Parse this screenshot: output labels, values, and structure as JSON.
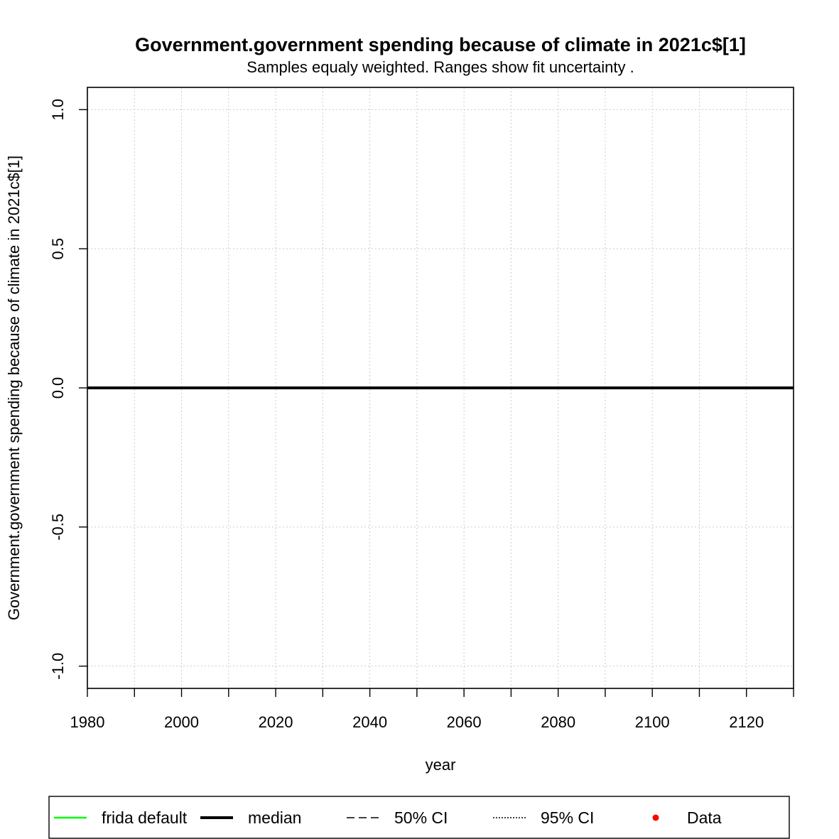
{
  "chart_data": {
    "type": "line",
    "title": "Government.government spending because of climate in 2021c$[1]",
    "subtitle": "Samples equaly weighted. Ranges show  fit uncertainty .",
    "xlabel": "year",
    "ylabel": "Government.government spending because of climate in 2021c$[1]",
    "xlim": [
      1980,
      2130
    ],
    "ylim": [
      -1.08,
      1.08
    ],
    "x_ticks": [
      1980,
      2000,
      2020,
      2040,
      2060,
      2080,
      2100,
      2120
    ],
    "x_minor_ticks": [
      1990,
      2010,
      2030,
      2050,
      2070,
      2090,
      2110,
      2130
    ],
    "y_ticks": [
      -1.0,
      -0.5,
      0.0,
      0.5,
      1.0
    ],
    "y_tick_labels": [
      "-1.0",
      "-0.5",
      "0.0",
      "0.5",
      "1.0"
    ],
    "grid": true,
    "series": [
      {
        "name": "frida default",
        "color": "#00ff00",
        "style": "solid",
        "x": [
          1980,
          2130
        ],
        "y": [
          0,
          0
        ]
      },
      {
        "name": "median",
        "color": "#000000",
        "style": "solid-thick",
        "x": [
          1980,
          2130
        ],
        "y": [
          0,
          0
        ]
      }
    ],
    "legend": {
      "position": "bottom",
      "entries": [
        {
          "label": "frida default",
          "kind": "line",
          "color": "#00ff00",
          "style": "solid"
        },
        {
          "label": "median",
          "kind": "line",
          "color": "#000000",
          "style": "thick"
        },
        {
          "label": "50% CI",
          "kind": "line",
          "color": "#000000",
          "style": "dashed"
        },
        {
          "label": "95% CI",
          "kind": "line",
          "color": "#000000",
          "style": "dotted"
        },
        {
          "label": "Data",
          "kind": "point",
          "color": "#ff0000",
          "style": "dot"
        }
      ]
    }
  }
}
